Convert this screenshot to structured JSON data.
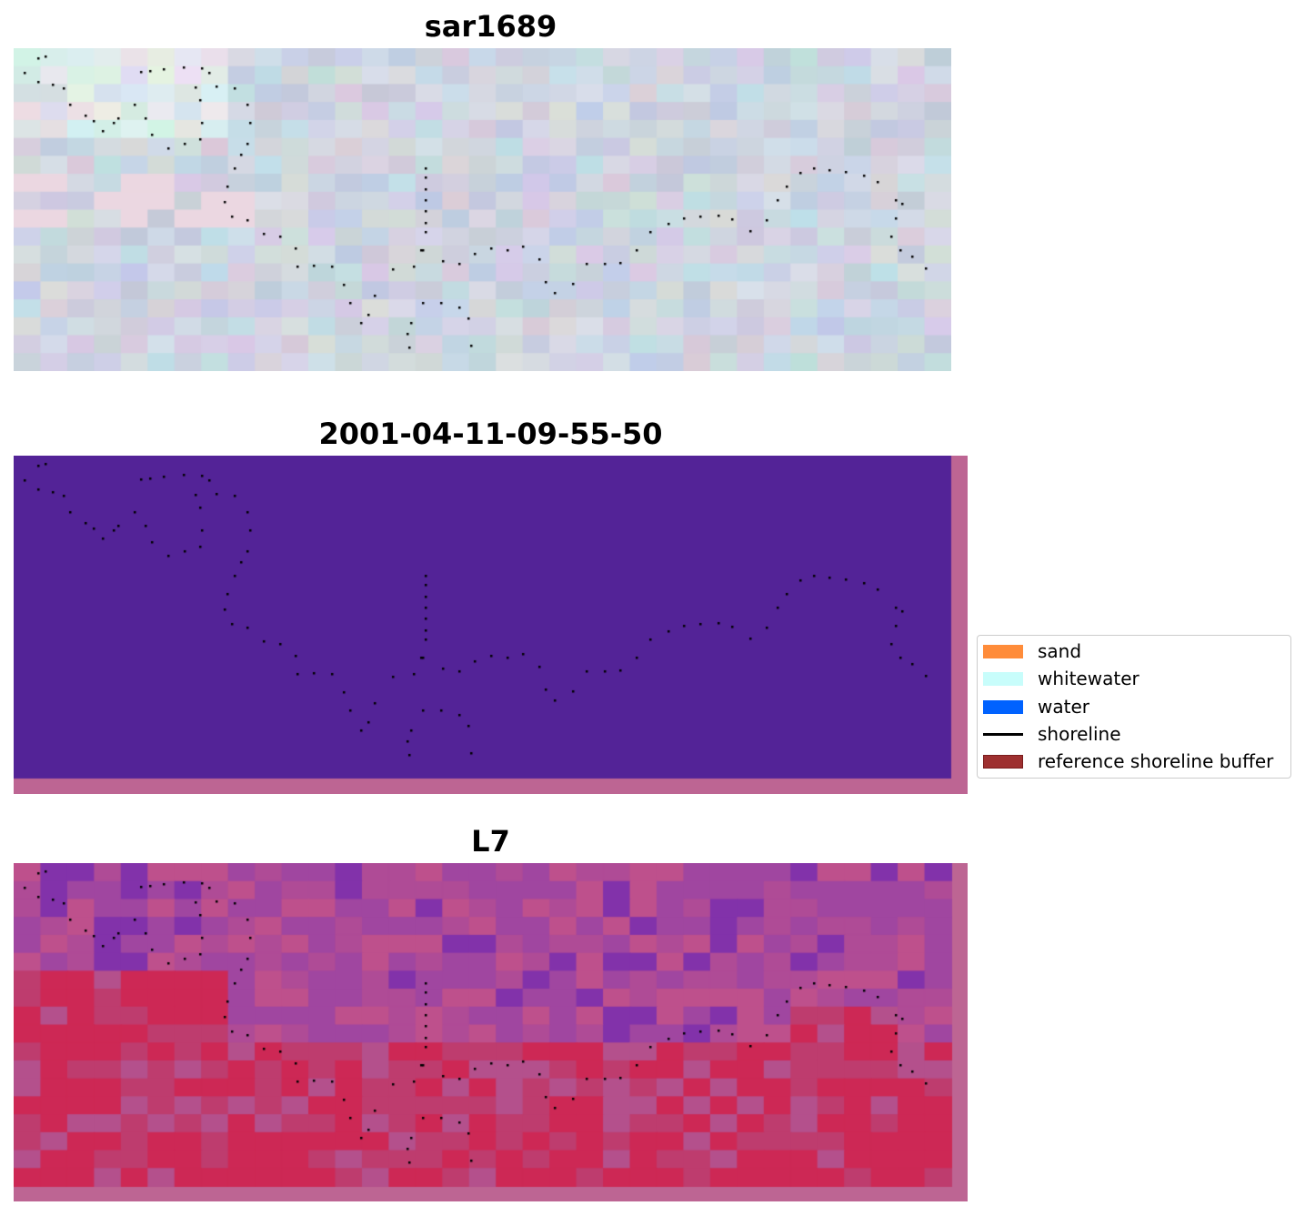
{
  "panels": [
    {
      "title": "sar1689"
    },
    {
      "title": "2001-04-11-09-55-50"
    },
    {
      "title": "L7"
    }
  ],
  "legend": {
    "items": [
      {
        "label": "sand",
        "color": "#ff8c3a",
        "kind": "patch"
      },
      {
        "label": "whitewater",
        "color": "#c8fdfb",
        "kind": "patch"
      },
      {
        "label": "water",
        "color": "#0062ff",
        "kind": "patch"
      },
      {
        "label": "shoreline",
        "color": "#000000",
        "kind": "line"
      },
      {
        "label": "reference shoreline buffer",
        "color": "#9e3030",
        "kind": "patch"
      }
    ]
  },
  "chart_data": {
    "type": "heatmap",
    "subplots": [
      {
        "title": "sar1689",
        "description_type": "RGB image with shoreline points"
      },
      {
        "title": "2001-04-11-09-55-50",
        "description_type": "classified image with shoreline points"
      },
      {
        "title": "L7",
        "description_type": "index image with shoreline points"
      }
    ],
    "legend": [
      "sand",
      "whitewater",
      "water",
      "shoreline",
      "reference shoreline buffer"
    ],
    "legend_placement": "center-right",
    "axes": "off"
  }
}
